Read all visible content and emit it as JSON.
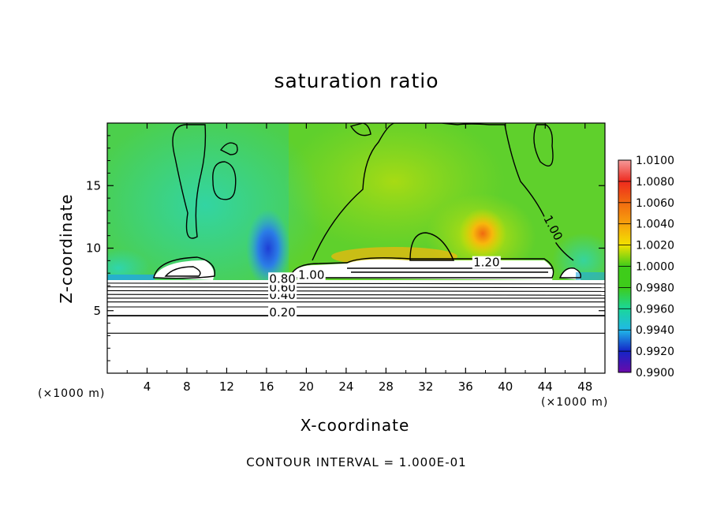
{
  "chart_data": {
    "type": "heatmap",
    "title": "saturation ratio",
    "xlabel": "X-coordinate",
    "ylabel": "Z-coordinate",
    "x_unit": "(×1000 m)",
    "y_unit": "(×1000 m)",
    "xlim": [
      0,
      50
    ],
    "ylim": [
      0,
      20
    ],
    "x_ticks": [
      4,
      8,
      12,
      16,
      20,
      24,
      28,
      32,
      36,
      40,
      44,
      48
    ],
    "y_ticks": [
      5,
      10,
      15
    ],
    "colorbar": {
      "labels": [
        "1.0100",
        "1.0080",
        "1.0060",
        "1.0040",
        "1.0020",
        "1.0000",
        "0.9980",
        "0.9960",
        "0.9940",
        "0.9920",
        "0.9900"
      ],
      "colors": [
        "#f49a9a",
        "#ee2a1e",
        "#f26a10",
        "#f7a20c",
        "#f2e200",
        "#aedc0a",
        "#3ecc1a",
        "#1ad79a",
        "#20b8e8",
        "#1e6ae6",
        "#1424c8",
        "#6a0aaa"
      ]
    },
    "contour_labels": [
      {
        "text": "0.20",
        "x": 17.6,
        "z": 4.6
      },
      {
        "text": "0.40",
        "x": 17.6,
        "z": 6.0
      },
      {
        "text": "0.60",
        "x": 17.6,
        "z": 6.6
      },
      {
        "text": "0.80",
        "x": 17.6,
        "z": 7.3
      },
      {
        "text": "1.00",
        "x": 20.5,
        "z": 7.6
      },
      {
        "text": "1.20",
        "x": 38.1,
        "z": 8.6
      },
      {
        "text": "1.00",
        "x": 44.5,
        "z": 11.5
      }
    ],
    "contour_interval_text": "CONTOUR INTERVAL = 1.000E-01",
    "grid": false
  }
}
